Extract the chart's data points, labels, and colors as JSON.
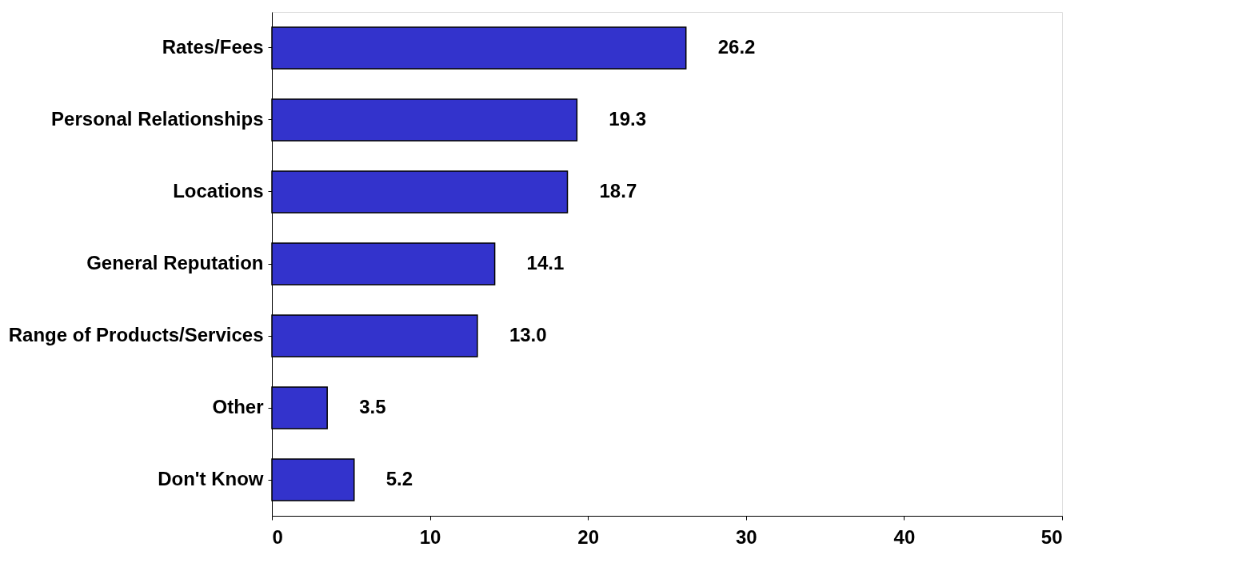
{
  "chart_data": {
    "type": "bar",
    "orientation": "horizontal",
    "categories": [
      "Rates/Fees",
      "Personal Relationships",
      "Locations",
      "General Reputation",
      "Range of Products/Services",
      "Other",
      "Don't Know"
    ],
    "values": [
      26.2,
      19.3,
      18.7,
      14.1,
      13.0,
      3.5,
      5.2
    ],
    "value_labels": [
      "26.2",
      "19.3",
      "18.7",
      "14.1",
      "13.0",
      "3.5",
      "5.2"
    ],
    "color": "#3333cc",
    "xlim": [
      0,
      50
    ],
    "xticks": [
      0,
      10,
      20,
      30,
      40,
      50
    ],
    "grid": false
  }
}
